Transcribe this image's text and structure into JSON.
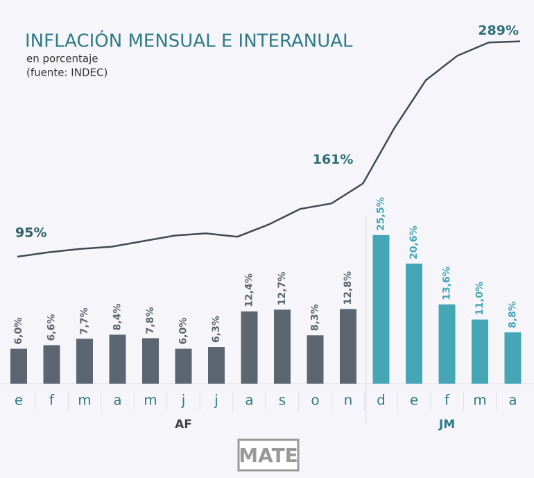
{
  "chart_data": [
    {
      "type": "bar",
      "title": "INFLACIÓN MENSUAL E INTERANUAL",
      "subtitle": [
        "en porcentaje",
        "(fuente: INDEC)"
      ],
      "ylim": [
        0,
        30
      ],
      "groups": [
        {
          "name": "AF",
          "color": "#5b6670",
          "categories": [
            "e",
            "f",
            "m",
            "a",
            "m",
            "j",
            "j",
            "a",
            "s",
            "o",
            "n"
          ],
          "values": [
            6.0,
            6.6,
            7.7,
            8.4,
            7.8,
            6.0,
            6.3,
            12.4,
            12.7,
            8.3,
            12.8
          ],
          "value_labels": [
            "6,0%",
            "6,6%",
            "7,7%",
            "8,4%",
            "7,8%",
            "6,0%",
            "6,3%",
            "12,4%",
            "12,7%",
            "8,3%",
            "12,8%"
          ]
        },
        {
          "name": "JM",
          "color": "#45a6b5",
          "categories": [
            "d",
            "e",
            "f",
            "m",
            "a"
          ],
          "values": [
            25.5,
            20.6,
            13.6,
            11.0,
            8.8
          ],
          "value_labels": [
            "25,5%",
            "20,6%",
            "13,6%",
            "11,0%",
            "8,8%"
          ]
        }
      ],
      "logo": "MATE"
    },
    {
      "type": "line",
      "color": "#3f4a50",
      "ylim": [
        60,
        300
      ],
      "values": [
        95,
        99,
        102,
        104,
        109,
        114,
        116,
        113,
        124,
        138,
        143,
        161,
        211,
        254,
        276,
        288,
        289
      ],
      "value_labels": [
        "95%",
        null,
        null,
        null,
        null,
        null,
        null,
        null,
        null,
        null,
        null,
        "161%",
        null,
        null,
        null,
        null,
        "289%"
      ]
    }
  ]
}
